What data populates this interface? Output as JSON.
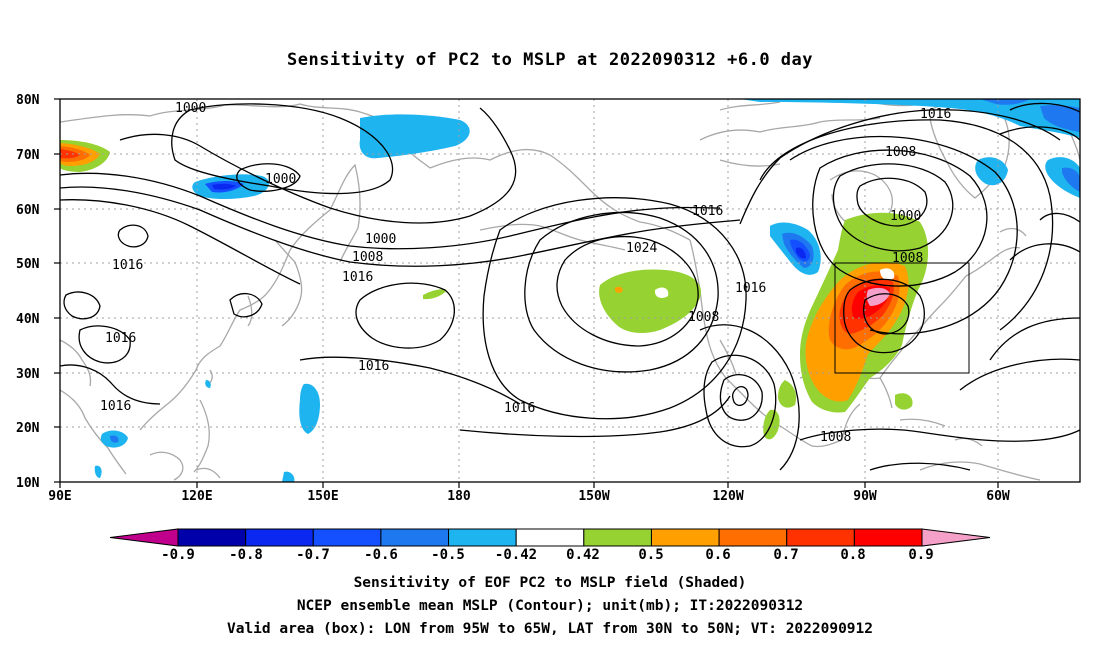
{
  "title": "Sensitivity of PC2 to MSLP at 2022090312 +6.0 day",
  "map": {
    "lat_labels": [
      "80N",
      "70N",
      "60N",
      "50N",
      "40N",
      "30N",
      "20N",
      "10N"
    ],
    "lon_labels": [
      "90E",
      "120E",
      "150E",
      "180",
      "150W",
      "120W",
      "90W",
      "60W"
    ],
    "contour_labels": [
      "1000",
      "1000",
      "1000",
      "1008",
      "1016",
      "1016",
      "1016",
      "1016",
      "1016",
      "1016",
      "1024",
      "1016",
      "1008",
      "1016",
      "1016",
      "1008",
      "1000",
      "1008",
      "1008"
    ],
    "box": {
      "lon_from": "95W",
      "lon_to": "65W",
      "lat_from": "30N",
      "lat_to": "50N"
    }
  },
  "colorbar": {
    "labels": [
      "-0.9",
      "-0.8",
      "-0.7",
      "-0.6",
      "-0.5",
      "-0.42",
      "0.42",
      "0.5",
      "0.6",
      "0.7",
      "0.8",
      "0.9"
    ],
    "colors": [
      "#c0008c",
      "#0000aa",
      "#0a28f0",
      "#1450ff",
      "#1e78f0",
      "#1eb4f0",
      "#ffffff",
      "#96d232",
      "#ffa000",
      "#ff6e00",
      "#ff3200",
      "#ff0000",
      "#f5a0c8"
    ]
  },
  "captions": {
    "line1": "Sensitivity of EOF PC2 to MSLP field (Shaded)",
    "line2": "NCEP ensemble mean MSLP (Contour); unit(mb); IT:2022090312",
    "line3": "Valid area (box): LON from 95W to 65W, LAT from 30N to 50N; VT: 2022090912"
  }
}
